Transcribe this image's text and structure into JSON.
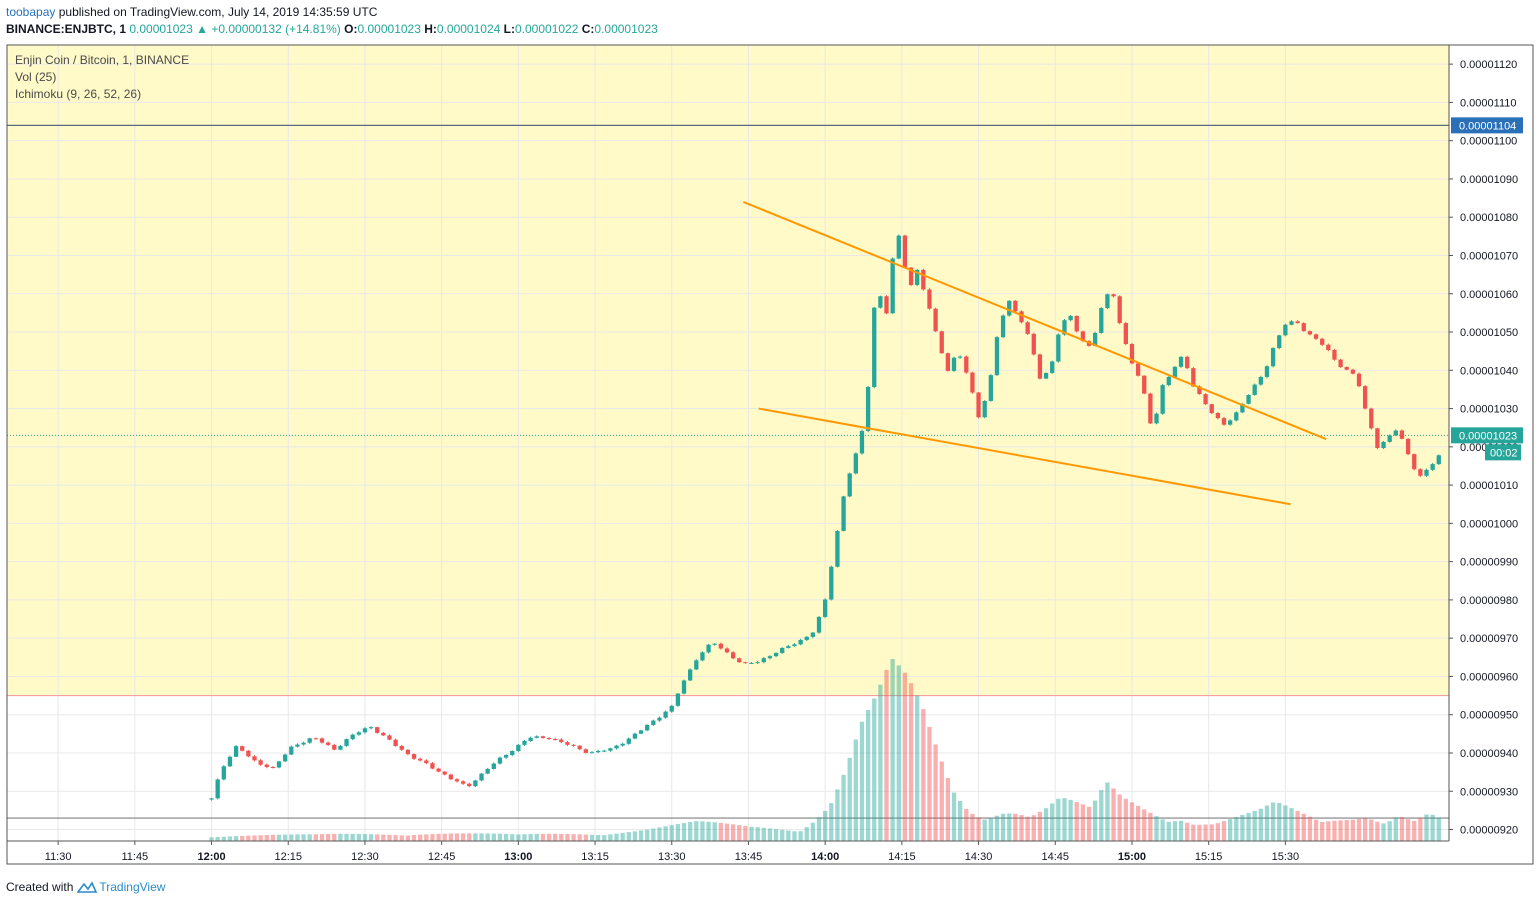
{
  "header": {
    "publisher": "toobapay",
    "published_text": " published on TradingView.com, July 14, 2019 14:35:59 UTC",
    "symbol_line": "BINANCE:ENJBTC, 1",
    "last_price": "0.00001023",
    "change_arrow": "▲",
    "change": "+0.00000132 (+14.81%)",
    "o_label": "O:",
    "o_value": "0.00001023",
    "h_label": "H:",
    "h_value": "0.00001024",
    "l_label": "L:",
    "l_value": "0.00001022",
    "c_label": "C:",
    "c_value": "0.00001023"
  },
  "legend": {
    "title": "Enjin Coin / Bitcoin, 1, BINANCE",
    "volume": "Vol (25)",
    "ichimoku": "Ichimoku (9, 26, 52, 26)"
  },
  "footer": {
    "created_with": "Created with",
    "brand": "TradingView"
  },
  "price_tags": {
    "line_price": "0.00001104",
    "current_price": "0.00001023",
    "countdown": "00:02",
    "line_color": "#2a70b8",
    "current_color": "#26a69a"
  },
  "colors": {
    "up": "#26a69a",
    "down": "#ef5350",
    "trendline": "#ff9800",
    "zone_fill": "#fffac8",
    "zone_border": "#f5a0a0"
  },
  "chart_data": {
    "type": "candlestick",
    "title": "Enjin Coin / Bitcoin, 1, BINANCE",
    "y_axis": {
      "min": 9.17e-06,
      "max": 1.125e-05,
      "ticks": [
        "0.00001120",
        "0.00001110",
        "0.00001100",
        "0.00001090",
        "0.00001080",
        "0.00001070",
        "0.00001060",
        "0.00001050",
        "0.00001040",
        "0.00001030",
        "0.00001020",
        "0.00001010",
        "0.00001000",
        "0.00000990",
        "0.00000980",
        "0.00000970",
        "0.00000960",
        "0.00000950",
        "0.00000940",
        "0.00000930",
        "0.00000920"
      ]
    },
    "x_axis": {
      "ticks": [
        "11:30",
        "11:45",
        "12:00",
        "12:15",
        "12:30",
        "12:45",
        "13:00",
        "13:15",
        "13:30",
        "13:45",
        "14:00",
        "14:15",
        "14:30",
        "14:45",
        "15:00",
        "15:15",
        "15:30"
      ],
      "bold_ticks": [
        "12:00",
        "13:00",
        "14:00",
        "15:00"
      ],
      "range_minutes": [
        -40,
        242
      ]
    },
    "horizontal_lines": [
      {
        "price": 1.104e-05,
        "color": "#5b6b80"
      },
      {
        "price": 9.55e-06,
        "color": "#f5a0a0"
      },
      {
        "price": 9.23e-06,
        "color": "#808080"
      }
    ],
    "yellow_zone": {
      "from": 9.55e-06,
      "to": 1.125e-05
    },
    "current_price_line": 1.023e-05,
    "trendlines": [
      {
        "t1": 104,
        "p1": 1.084e-05,
        "t2": 218,
        "p2": 1.022e-05
      },
      {
        "t1": 107,
        "p1": 1.03e-05,
        "t2": 211,
        "p2": 1.005e-05
      }
    ],
    "close_path": [
      {
        "t": 0,
        "p": 9.28e-06
      },
      {
        "t": 2,
        "p": 9.36e-06
      },
      {
        "t": 5,
        "p": 9.42e-06
      },
      {
        "t": 8,
        "p": 9.38e-06
      },
      {
        "t": 12,
        "p": 9.36e-06
      },
      {
        "t": 16,
        "p": 9.42e-06
      },
      {
        "t": 20,
        "p": 9.44e-06
      },
      {
        "t": 24,
        "p": 9.41e-06
      },
      {
        "t": 28,
        "p": 9.45e-06
      },
      {
        "t": 31,
        "p": 9.47e-06
      },
      {
        "t": 34,
        "p": 9.44e-06
      },
      {
        "t": 38,
        "p": 9.4e-06
      },
      {
        "t": 42,
        "p": 9.37e-06
      },
      {
        "t": 46,
        "p": 9.34e-06
      },
      {
        "t": 50,
        "p": 9.31e-06
      },
      {
        "t": 54,
        "p": 9.36e-06
      },
      {
        "t": 58,
        "p": 9.4e-06
      },
      {
        "t": 62,
        "p": 9.44e-06
      },
      {
        "t": 66,
        "p": 9.44e-06
      },
      {
        "t": 70,
        "p": 9.42e-06
      },
      {
        "t": 74,
        "p": 9.4e-06
      },
      {
        "t": 78,
        "p": 9.41e-06
      },
      {
        "t": 82,
        "p": 9.44e-06
      },
      {
        "t": 86,
        "p": 9.48e-06
      },
      {
        "t": 90,
        "p": 9.52e-06
      },
      {
        "t": 92,
        "p": 9.58e-06
      },
      {
        "t": 95,
        "p": 9.65e-06
      },
      {
        "t": 98,
        "p": 9.69e-06
      },
      {
        "t": 101,
        "p": 9.66e-06
      },
      {
        "t": 104,
        "p": 9.63e-06
      },
      {
        "t": 107,
        "p": 9.64e-06
      },
      {
        "t": 110,
        "p": 9.66e-06
      },
      {
        "t": 113,
        "p": 9.68e-06
      },
      {
        "t": 116,
        "p": 9.7e-06
      },
      {
        "t": 118,
        "p": 9.72e-06
      },
      {
        "t": 120,
        "p": 9.8e-06
      },
      {
        "t": 122,
        "p": 9.95e-06
      },
      {
        "t": 124,
        "p": 1.01e-05
      },
      {
        "t": 126,
        "p": 1.018e-05
      },
      {
        "t": 128,
        "p": 1.028e-05
      },
      {
        "t": 129,
        "p": 1.048e-05
      },
      {
        "t": 130,
        "p": 1.062e-05
      },
      {
        "t": 132,
        "p": 1.055e-05
      },
      {
        "t": 133,
        "p": 1.068e-05
      },
      {
        "t": 135,
        "p": 1.078e-05
      },
      {
        "t": 136,
        "p": 1.06e-05
      },
      {
        "t": 138,
        "p": 1.066e-05
      },
      {
        "t": 140,
        "p": 1.058e-05
      },
      {
        "t": 142,
        "p": 1.048e-05
      },
      {
        "t": 144,
        "p": 1.04e-05
      },
      {
        "t": 146,
        "p": 1.045e-05
      },
      {
        "t": 148,
        "p": 1.038e-05
      },
      {
        "t": 150,
        "p": 1.028e-05
      },
      {
        "t": 152,
        "p": 1.035e-05
      },
      {
        "t": 154,
        "p": 1.052e-05
      },
      {
        "t": 156,
        "p": 1.058e-05
      },
      {
        "t": 158,
        "p": 1.054e-05
      },
      {
        "t": 160,
        "p": 1.048e-05
      },
      {
        "t": 162,
        "p": 1.038e-05
      },
      {
        "t": 164,
        "p": 1.04e-05
      },
      {
        "t": 166,
        "p": 1.052e-05
      },
      {
        "t": 168,
        "p": 1.054e-05
      },
      {
        "t": 170,
        "p": 1.048e-05
      },
      {
        "t": 172,
        "p": 1.046e-05
      },
      {
        "t": 174,
        "p": 1.056e-05
      },
      {
        "t": 176,
        "p": 1.062e-05
      },
      {
        "t": 178,
        "p": 1.05e-05
      },
      {
        "t": 180,
        "p": 1.042e-05
      },
      {
        "t": 182,
        "p": 1.036e-05
      },
      {
        "t": 184,
        "p": 1.024e-05
      },
      {
        "t": 186,
        "p": 1.036e-05
      },
      {
        "t": 188,
        "p": 1.04e-05
      },
      {
        "t": 190,
        "p": 1.044e-05
      },
      {
        "t": 192,
        "p": 1.036e-05
      },
      {
        "t": 194,
        "p": 1.032e-05
      },
      {
        "t": 196,
        "p": 1.028e-05
      },
      {
        "t": 198,
        "p": 1.026e-05
      },
      {
        "t": 200,
        "p": 1.028e-05
      },
      {
        "t": 202,
        "p": 1.032e-05
      },
      {
        "t": 204,
        "p": 1.036e-05
      },
      {
        "t": 206,
        "p": 1.04e-05
      },
      {
        "t": 208,
        "p": 1.047e-05
      },
      {
        "t": 210,
        "p": 1.052e-05
      },
      {
        "t": 212,
        "p": 1.053e-05
      },
      {
        "t": 214,
        "p": 1.05e-05
      },
      {
        "t": 216,
        "p": 1.048e-05
      },
      {
        "t": 218,
        "p": 1.046e-05
      },
      {
        "t": 220,
        "p": 1.042e-05
      },
      {
        "t": 222,
        "p": 1.04e-05
      },
      {
        "t": 224,
        "p": 1.038e-05
      },
      {
        "t": 226,
        "p": 1.028e-05
      },
      {
        "t": 228,
        "p": 1.02e-05
      },
      {
        "t": 230,
        "p": 1.022e-05
      },
      {
        "t": 232,
        "p": 1.025e-05
      },
      {
        "t": 234,
        "p": 1.018e-05
      },
      {
        "t": 236,
        "p": 1.012e-05
      },
      {
        "t": 238,
        "p": 1.014e-05
      },
      {
        "t": 240,
        "p": 1.018e-05
      },
      {
        "t": 241,
        "p": 1.023e-05
      }
    ],
    "volume_profile": [
      {
        "t": 0,
        "v": 2
      },
      {
        "t": 20,
        "v": 2
      },
      {
        "t": 40,
        "v": 3
      },
      {
        "t": 60,
        "v": 2
      },
      {
        "t": 75,
        "v": 3
      },
      {
        "t": 85,
        "v": 4
      },
      {
        "t": 95,
        "v": 6
      },
      {
        "t": 105,
        "v": 5
      },
      {
        "t": 115,
        "v": 5
      },
      {
        "t": 118,
        "v": 9
      },
      {
        "t": 121,
        "v": 14
      },
      {
        "t": 124,
        "v": 25
      },
      {
        "t": 127,
        "v": 38
      },
      {
        "t": 130,
        "v": 45
      },
      {
        "t": 133,
        "v": 55
      },
      {
        "t": 136,
        "v": 50
      },
      {
        "t": 139,
        "v": 42
      },
      {
        "t": 142,
        "v": 30
      },
      {
        "t": 145,
        "v": 18
      },
      {
        "t": 148,
        "v": 12
      },
      {
        "t": 151,
        "v": 10
      },
      {
        "t": 154,
        "v": 14
      },
      {
        "t": 157,
        "v": 12
      },
      {
        "t": 160,
        "v": 9
      },
      {
        "t": 163,
        "v": 11
      },
      {
        "t": 166,
        "v": 14
      },
      {
        "t": 169,
        "v": 12
      },
      {
        "t": 172,
        "v": 10
      },
      {
        "t": 175,
        "v": 18
      },
      {
        "t": 178,
        "v": 14
      },
      {
        "t": 181,
        "v": 12
      },
      {
        "t": 184,
        "v": 10
      },
      {
        "t": 187,
        "v": 8
      },
      {
        "t": 190,
        "v": 10
      },
      {
        "t": 193,
        "v": 8
      },
      {
        "t": 196,
        "v": 7
      },
      {
        "t": 199,
        "v": 8
      },
      {
        "t": 202,
        "v": 9
      },
      {
        "t": 205,
        "v": 10
      },
      {
        "t": 208,
        "v": 12
      },
      {
        "t": 211,
        "v": 10
      },
      {
        "t": 214,
        "v": 8
      },
      {
        "t": 217,
        "v": 6
      },
      {
        "t": 220,
        "v": 7
      },
      {
        "t": 223,
        "v": 8
      },
      {
        "t": 226,
        "v": 10
      },
      {
        "t": 229,
        "v": 9
      },
      {
        "t": 232,
        "v": 12
      },
      {
        "t": 235,
        "v": 8
      },
      {
        "t": 238,
        "v": 10
      },
      {
        "t": 241,
        "v": 7
      }
    ],
    "volume_max": 60
  }
}
